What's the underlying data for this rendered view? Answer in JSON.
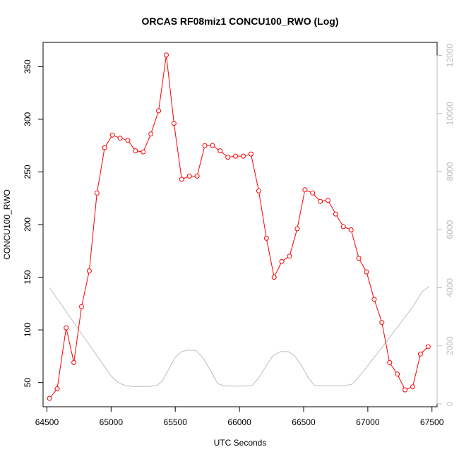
{
  "chart_data": {
    "type": "line",
    "title": "ORCAS RF08miz1 CONCU100_RWO (Log)",
    "xlabel": "UTC Seconds",
    "ylabel": "CONCU100_RWO",
    "xlim": [
      64470,
      67540
    ],
    "ylim": [
      27,
      373
    ],
    "y2lim": [
      -100,
      12450
    ],
    "x_ticks": [
      64500,
      65000,
      65500,
      66000,
      66500,
      67000,
      67500
    ],
    "y_ticks": [
      50,
      100,
      150,
      200,
      250,
      300,
      350
    ],
    "y2_ticks": [
      0,
      2000,
      4000,
      6000,
      8000,
      10000,
      12000
    ],
    "grid": false,
    "colors": {
      "primary": "#ff0000",
      "secondary": "#bebebe",
      "axis": "#000000"
    },
    "series": [
      {
        "axis": "left",
        "style": "line-with-open-circles",
        "x": [
          64520,
          64580,
          64650,
          64710,
          64770,
          64830,
          64890,
          64950,
          65010,
          65070,
          65130,
          65190,
          65250,
          65310,
          65370,
          65430,
          65490,
          65550,
          65610,
          65670,
          65730,
          65790,
          65850,
          65910,
          65970,
          66030,
          66090,
          66150,
          66210,
          66270,
          66330,
          66390,
          66450,
          66510,
          66570,
          66630,
          66690,
          66750,
          66810,
          66870,
          66930,
          66990,
          67050,
          67110,
          67170,
          67230,
          67290,
          67350,
          67410,
          67470
        ],
        "y": [
          35,
          44,
          102,
          69,
          122,
          156,
          230,
          273,
          285,
          282,
          280,
          270,
          269,
          286,
          308,
          361,
          296,
          243,
          246,
          246,
          275,
          275,
          270,
          264,
          265,
          265,
          267,
          232,
          187,
          150,
          165,
          170,
          196,
          233,
          230,
          222,
          223,
          210,
          198,
          195,
          168,
          155,
          129,
          107,
          69,
          58,
          43,
          46,
          77,
          84
        ]
      },
      {
        "axis": "right",
        "style": "line",
        "x": [
          64520,
          64580,
          64640,
          64700,
          64760,
          64820,
          64880,
          64940,
          65000,
          65060,
          65120,
          65180,
          65240,
          65300,
          65360,
          65400,
          65450,
          65500,
          65550,
          65600,
          65660,
          65720,
          65780,
          65830,
          65880,
          65940,
          66000,
          66050,
          66100,
          66150,
          66200,
          66260,
          66320,
          66380,
          66430,
          66480,
          66530,
          66580,
          66640,
          66700,
          66760,
          66820,
          66880,
          66940,
          67000,
          67060,
          67120,
          67180,
          67240,
          67300,
          67360,
          67420,
          67480
        ],
        "y": [
          4000,
          3620,
          3240,
          2860,
          2480,
          2100,
          1720,
          1340,
          960,
          720,
          620,
          600,
          600,
          600,
          640,
          800,
          1200,
          1600,
          1800,
          1850,
          1840,
          1560,
          1100,
          700,
          620,
          610,
          610,
          610,
          640,
          900,
          1250,
          1650,
          1800,
          1800,
          1650,
          1350,
          940,
          650,
          620,
          620,
          620,
          620,
          680,
          980,
          1320,
          1660,
          2000,
          2350,
          2700,
          3050,
          3400,
          3850,
          4050
        ]
      }
    ]
  }
}
